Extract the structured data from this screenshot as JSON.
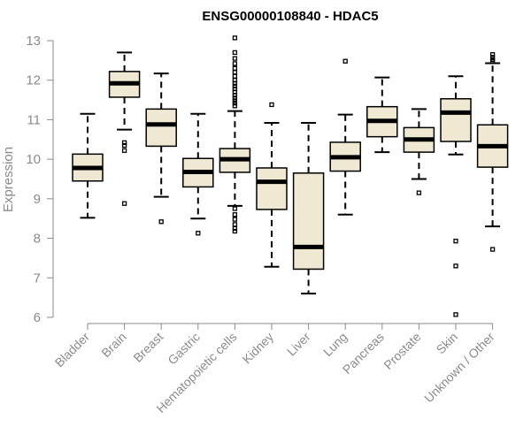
{
  "chart_data": {
    "type": "boxplot",
    "title": "ENSG00000108840 - HDAC5",
    "xlabel": "",
    "ylabel": "Expression",
    "ylim": [
      6,
      13
    ],
    "yticks": [
      "6",
      "7",
      "8",
      "9",
      "10",
      "11",
      "12",
      "13"
    ],
    "grid": false,
    "box_fill": "#efe8d2",
    "categories": [
      "Bladder",
      "Brain",
      "Breast",
      "Gastric",
      "Hematopoietic cells",
      "Kidney",
      "Liver",
      "Lung",
      "Pancreas",
      "Prostate",
      "Skin",
      "Unknown / Other"
    ],
    "boxes": [
      {
        "category": "Bladder",
        "whisker_low": 8.52,
        "q1": 9.45,
        "median": 9.78,
        "q3": 10.13,
        "whisker_high": 11.15,
        "outliers": []
      },
      {
        "category": "Brain",
        "whisker_low": 10.75,
        "q1": 11.57,
        "median": 11.92,
        "q3": 12.22,
        "whisker_high": 12.7,
        "outliers": [
          10.42,
          10.35,
          10.22,
          8.88
        ]
      },
      {
        "category": "Breast",
        "whisker_low": 9.05,
        "q1": 10.33,
        "median": 10.88,
        "q3": 11.27,
        "whisker_high": 12.17,
        "outliers": [
          8.42
        ]
      },
      {
        "category": "Gastric",
        "whisker_low": 8.5,
        "q1": 9.3,
        "median": 9.68,
        "q3": 10.02,
        "whisker_high": 11.15,
        "outliers": [
          8.13
        ]
      },
      {
        "category": "Hematopoietic cells",
        "whisker_low": 8.82,
        "q1": 9.67,
        "median": 10.0,
        "q3": 10.27,
        "whisker_high": 11.22,
        "outliers": [
          13.07,
          12.7,
          12.55,
          12.42,
          12.3,
          12.2,
          12.1,
          12.0,
          11.92,
          11.85,
          11.78,
          11.7,
          11.62,
          11.55,
          11.48,
          11.42,
          11.35,
          8.75,
          8.6,
          8.48,
          8.35,
          8.25,
          8.18
        ]
      },
      {
        "category": "Kidney",
        "whisker_low": 7.28,
        "q1": 8.73,
        "median": 9.43,
        "q3": 9.78,
        "whisker_high": 10.92,
        "outliers": [
          11.38
        ]
      },
      {
        "category": "Liver",
        "whisker_low": 6.6,
        "q1": 7.22,
        "median": 7.78,
        "q3": 9.65,
        "whisker_high": 10.92,
        "outliers": []
      },
      {
        "category": "Lung",
        "whisker_low": 8.6,
        "q1": 9.7,
        "median": 10.05,
        "q3": 10.43,
        "whisker_high": 11.13,
        "outliers": [
          12.48
        ]
      },
      {
        "category": "Pancreas",
        "whisker_low": 10.18,
        "q1": 10.57,
        "median": 10.97,
        "q3": 11.33,
        "whisker_high": 12.07,
        "outliers": []
      },
      {
        "category": "Prostate",
        "whisker_low": 9.5,
        "q1": 10.18,
        "median": 10.5,
        "q3": 10.8,
        "whisker_high": 11.27,
        "outliers": [
          9.15
        ]
      },
      {
        "category": "Skin",
        "whisker_low": 10.12,
        "q1": 10.45,
        "median": 11.18,
        "q3": 11.53,
        "whisker_high": 12.1,
        "outliers": [
          7.93,
          7.3,
          6.07
        ]
      },
      {
        "category": "Unknown / Other",
        "whisker_low": 8.3,
        "q1": 9.8,
        "median": 10.33,
        "q3": 10.87,
        "whisker_high": 12.43,
        "outliers": [
          12.65,
          12.58,
          12.52,
          12.47,
          7.72
        ]
      }
    ]
  }
}
